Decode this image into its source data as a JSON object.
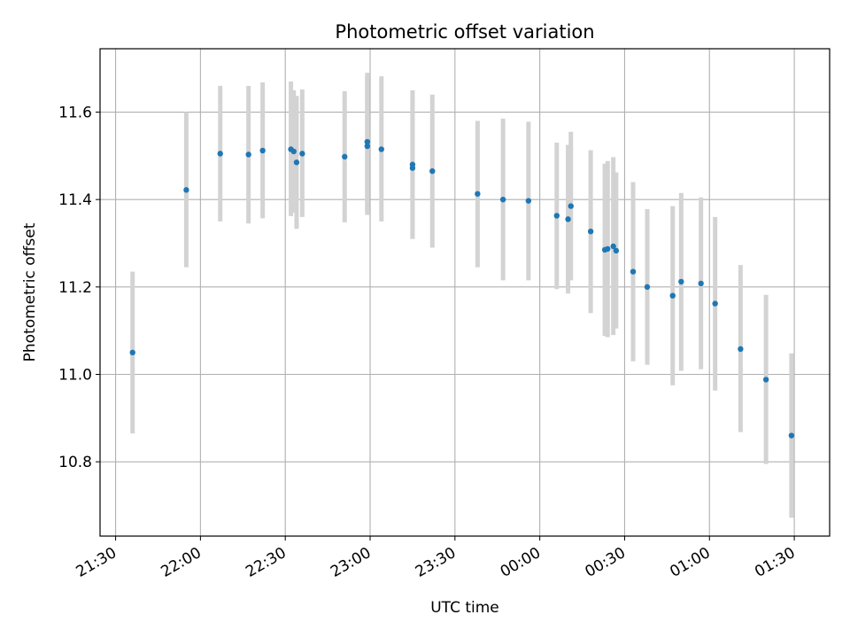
{
  "chart_data": {
    "type": "scatter",
    "title": "Photometric offset variation",
    "xlabel": "UTC time",
    "ylabel": "Photometric offset",
    "grid": true,
    "x_ticks": [
      "21:30",
      "22:00",
      "22:30",
      "23:00",
      "23:30",
      "00:00",
      "00:30",
      "01:00",
      "01:30"
    ],
    "x_tick_minutes": [
      0,
      30,
      60,
      90,
      120,
      150,
      180,
      210,
      240
    ],
    "y_ticks": [
      "10.8",
      "11.0",
      "11.2",
      "11.4",
      "11.6"
    ],
    "xlim_minutes": [
      -5.5,
      252.5
    ],
    "ylim": [
      10.63,
      11.745
    ],
    "x_origin_label": "21:30",
    "series": [
      {
        "marker_color": "#1f77b4",
        "errorbar_color": "#d3d3d3",
        "points": [
          {
            "t": "21:36",
            "y": 11.05,
            "lo": 10.865,
            "hi": 11.235
          },
          {
            "t": "21:55",
            "y": 11.422,
            "lo": 11.245,
            "hi": 11.6
          },
          {
            "t": "22:07",
            "y": 11.505,
            "lo": 11.35,
            "hi": 11.66
          },
          {
            "t": "22:17",
            "y": 11.503,
            "lo": 11.345,
            "hi": 11.66
          },
          {
            "t": "22:22",
            "y": 11.512,
            "lo": 11.357,
            "hi": 11.668
          },
          {
            "t": "22:32",
            "y": 11.515,
            "lo": 11.362,
            "hi": 11.67
          },
          {
            "t": "22:33",
            "y": 11.51,
            "lo": 11.37,
            "hi": 11.65
          },
          {
            "t": "22:34",
            "y": 11.485,
            "lo": 11.333,
            "hi": 11.637
          },
          {
            "t": "22:36",
            "y": 11.505,
            "lo": 11.36,
            "hi": 11.652
          },
          {
            "t": "22:51",
            "y": 11.498,
            "lo": 11.348,
            "hi": 11.648
          },
          {
            "t": "22:59",
            "y": 11.532,
            "lo": 11.375,
            "hi": 11.69
          },
          {
            "t": "22:59",
            "y": 11.522,
            "lo": 11.365,
            "hi": 11.68
          },
          {
            "t": "23:04",
            "y": 11.515,
            "lo": 11.35,
            "hi": 11.682
          },
          {
            "t": "23:15",
            "y": 11.472,
            "lo": 11.31,
            "hi": 11.636
          },
          {
            "t": "23:15",
            "y": 11.48,
            "lo": 11.31,
            "hi": 11.65
          },
          {
            "t": "23:22",
            "y": 11.465,
            "lo": 11.29,
            "hi": 11.64
          },
          {
            "t": "23:38",
            "y": 11.413,
            "lo": 11.245,
            "hi": 11.58
          },
          {
            "t": "23:47",
            "y": 11.4,
            "lo": 11.215,
            "hi": 11.585
          },
          {
            "t": "23:56",
            "y": 11.397,
            "lo": 11.215,
            "hi": 11.578
          },
          {
            "t": "00:06",
            "y": 11.363,
            "lo": 11.195,
            "hi": 11.53
          },
          {
            "t": "00:10",
            "y": 11.355,
            "lo": 11.185,
            "hi": 11.525
          },
          {
            "t": "00:11",
            "y": 11.385,
            "lo": 11.215,
            "hi": 11.555
          },
          {
            "t": "00:18",
            "y": 11.327,
            "lo": 11.14,
            "hi": 11.513
          },
          {
            "t": "00:23",
            "y": 11.285,
            "lo": 11.088,
            "hi": 11.482
          },
          {
            "t": "00:24",
            "y": 11.287,
            "lo": 11.085,
            "hi": 11.488
          },
          {
            "t": "00:26",
            "y": 11.293,
            "lo": 11.09,
            "hi": 11.497
          },
          {
            "t": "00:27",
            "y": 11.283,
            "lo": 11.105,
            "hi": 11.462
          },
          {
            "t": "00:33",
            "y": 11.235,
            "lo": 11.03,
            "hi": 11.44
          },
          {
            "t": "00:38",
            "y": 11.2,
            "lo": 11.022,
            "hi": 11.378
          },
          {
            "t": "00:47",
            "y": 11.18,
            "lo": 10.975,
            "hi": 11.385
          },
          {
            "t": "00:50",
            "y": 11.212,
            "lo": 11.008,
            "hi": 11.415
          },
          {
            "t": "00:57",
            "y": 11.208,
            "lo": 11.012,
            "hi": 11.405
          },
          {
            "t": "01:02",
            "y": 11.162,
            "lo": 10.963,
            "hi": 11.36
          },
          {
            "t": "01:11",
            "y": 11.058,
            "lo": 10.868,
            "hi": 11.25
          },
          {
            "t": "01:20",
            "y": 10.988,
            "lo": 10.795,
            "hi": 11.182
          },
          {
            "t": "01:29",
            "y": 10.86,
            "lo": 10.672,
            "hi": 11.048
          }
        ]
      }
    ]
  }
}
